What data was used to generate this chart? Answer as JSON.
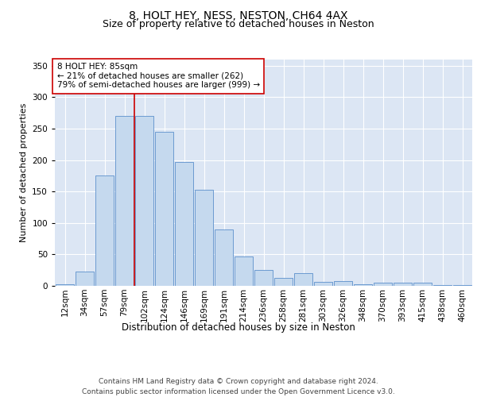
{
  "title": "8, HOLT HEY, NESS, NESTON, CH64 4AX",
  "subtitle": "Size of property relative to detached houses in Neston",
  "xlabel": "Distribution of detached houses by size in Neston",
  "ylabel": "Number of detached properties",
  "bar_color": "#c5d9ee",
  "bar_edge_color": "#5b8fcb",
  "plot_bg_color": "#dce6f4",
  "categories": [
    "12sqm",
    "34sqm",
    "57sqm",
    "79sqm",
    "102sqm",
    "124sqm",
    "146sqm",
    "169sqm",
    "191sqm",
    "214sqm",
    "236sqm",
    "258sqm",
    "281sqm",
    "303sqm",
    "326sqm",
    "348sqm",
    "370sqm",
    "393sqm",
    "415sqm",
    "438sqm",
    "460sqm"
  ],
  "values": [
    2,
    23,
    175,
    270,
    270,
    245,
    197,
    153,
    90,
    47,
    25,
    13,
    20,
    6,
    8,
    3,
    5,
    5,
    5,
    1,
    1
  ],
  "vline_x": 3.5,
  "vline_color": "#cc0000",
  "annotation_text": "8 HOLT HEY: 85sqm\n← 21% of detached houses are smaller (262)\n79% of semi-detached houses are larger (999) →",
  "annotation_box_color": "white",
  "annotation_box_edge": "#cc0000",
  "ylim": [
    0,
    360
  ],
  "yticks": [
    0,
    50,
    100,
    150,
    200,
    250,
    300,
    350
  ],
  "footer": "Contains HM Land Registry data © Crown copyright and database right 2024.\nContains public sector information licensed under the Open Government Licence v3.0.",
  "title_fontsize": 10,
  "subtitle_fontsize": 9,
  "xlabel_fontsize": 8.5,
  "ylabel_fontsize": 8,
  "tick_fontsize": 7.5,
  "annotation_fontsize": 7.5
}
